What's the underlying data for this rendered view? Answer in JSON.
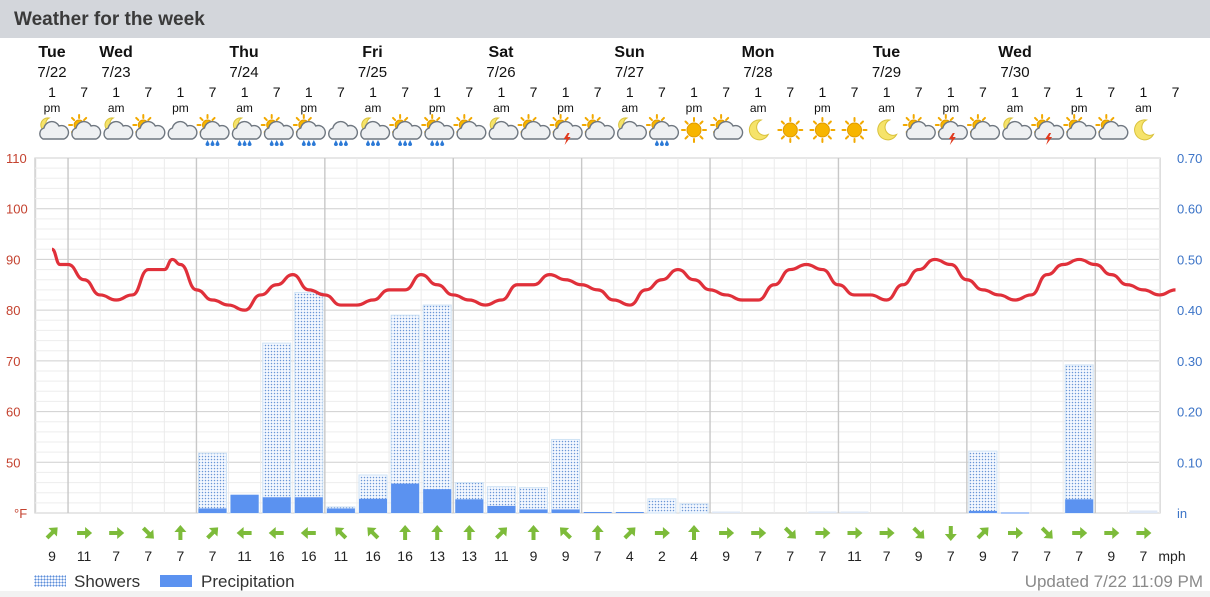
{
  "header": {
    "title": "Weather for the week"
  },
  "days": [
    {
      "name": "Tue",
      "date": "7/22"
    },
    {
      "name": "Wed",
      "date": "7/23"
    },
    {
      "name": "Thu",
      "date": "7/24"
    },
    {
      "name": "Fri",
      "date": "7/25"
    },
    {
      "name": "Sat",
      "date": "7/26"
    },
    {
      "name": "Sun",
      "date": "7/27"
    },
    {
      "name": "Mon",
      "date": "7/28"
    },
    {
      "name": "Tue",
      "date": "7/29"
    },
    {
      "name": "Wed",
      "date": "7/30"
    }
  ],
  "time_slots": [
    {
      "hour": "1",
      "ampm": "pm"
    },
    {
      "hour": "7",
      "ampm": ""
    },
    {
      "hour": "1",
      "ampm": "am"
    },
    {
      "hour": "7",
      "ampm": ""
    },
    {
      "hour": "1",
      "ampm": "pm"
    },
    {
      "hour": "7",
      "ampm": ""
    },
    {
      "hour": "1",
      "ampm": "am"
    },
    {
      "hour": "7",
      "ampm": ""
    },
    {
      "hour": "1",
      "ampm": "pm"
    },
    {
      "hour": "7",
      "ampm": ""
    },
    {
      "hour": "1",
      "ampm": "am"
    },
    {
      "hour": "7",
      "ampm": ""
    },
    {
      "hour": "1",
      "ampm": "pm"
    },
    {
      "hour": "7",
      "ampm": ""
    },
    {
      "hour": "1",
      "ampm": "am"
    },
    {
      "hour": "7",
      "ampm": ""
    },
    {
      "hour": "1",
      "ampm": "pm"
    },
    {
      "hour": "7",
      "ampm": ""
    },
    {
      "hour": "1",
      "ampm": "am"
    },
    {
      "hour": "7",
      "ampm": ""
    },
    {
      "hour": "1",
      "ampm": "pm"
    },
    {
      "hour": "7",
      "ampm": ""
    },
    {
      "hour": "1",
      "ampm": "am"
    },
    {
      "hour": "7",
      "ampm": ""
    },
    {
      "hour": "1",
      "ampm": "pm"
    },
    {
      "hour": "7",
      "ampm": ""
    },
    {
      "hour": "1",
      "ampm": "am"
    },
    {
      "hour": "7",
      "ampm": ""
    },
    {
      "hour": "1",
      "ampm": "pm"
    },
    {
      "hour": "7",
      "ampm": ""
    },
    {
      "hour": "1",
      "ampm": "am"
    },
    {
      "hour": "7",
      "ampm": ""
    },
    {
      "hour": "1",
      "ampm": "pm"
    },
    {
      "hour": "7",
      "ampm": ""
    },
    {
      "hour": "1",
      "ampm": "am"
    },
    {
      "hour": "7",
      "ampm": ""
    }
  ],
  "icons": [
    "partly-cloudy-night-icon",
    "partly-cloudy-icon",
    "partly-cloudy-night-icon",
    "partly-cloudy-icon",
    "cloudy-icon",
    "partly-cloudy-showers-icon",
    "partly-cloudy-night-showers-icon",
    "partly-cloudy-showers-icon",
    "partly-cloudy-showers-icon",
    "cloudy-showers-icon",
    "night-showers-icon",
    "partly-cloudy-showers-icon",
    "partly-cloudy-showers-icon",
    "partly-cloudy-icon",
    "partly-cloudy-night-icon",
    "partly-cloudy-icon",
    "partly-cloudy-thunder-icon",
    "partly-cloudy-icon",
    "partly-cloudy-night-icon",
    "partly-cloudy-showers-icon",
    "sunny-icon",
    "partly-cloudy-icon",
    "clear-night-icon",
    "sunny-icon",
    "sunny-icon",
    "sunny-icon",
    "clear-night-icon",
    "partly-cloudy-icon",
    "partly-cloudy-thunder-icon",
    "partly-cloudy-icon",
    "partly-cloudy-night-icon",
    "partly-cloudy-thunder-icon",
    "partly-cloudy-icon",
    "partly-cloudy-icon",
    "clear-night-icon"
  ],
  "chart_data": {
    "type": "line",
    "temperature": {
      "color": "#e0303a",
      "unit": "°F",
      "ylim": [
        40,
        110
      ],
      "ticks": [
        "110",
        "100",
        "90",
        "80",
        "70",
        "60",
        "50"
      ],
      "x": [
        0,
        0.25,
        0.5,
        1,
        1.5,
        2,
        2.5,
        3,
        3.5,
        3.75,
        4,
        4.5,
        5,
        5.5,
        6,
        6.5,
        7,
        7.5,
        8,
        8.5,
        9,
        9.5,
        10,
        10.5,
        11,
        11.5,
        12,
        12.5,
        13,
        13.5,
        14,
        14.5,
        15,
        15.5,
        16,
        16.5,
        17,
        17.5,
        18,
        18.5,
        19,
        19.5,
        20,
        20.5,
        21,
        21.5,
        22,
        22.5,
        23,
        23.5,
        24,
        24.5,
        25,
        25.5,
        26,
        26.5,
        27,
        27.5,
        28,
        28.5,
        29,
        29.5,
        30,
        30.5,
        31,
        31.5,
        32,
        32.5,
        33,
        33.5,
        34,
        34.5,
        35
      ],
      "y": [
        92,
        89,
        89,
        86,
        83,
        82,
        83,
        88,
        88,
        90,
        89,
        84,
        82,
        81,
        80,
        83,
        85,
        87,
        84,
        83,
        81,
        81,
        82,
        84,
        84,
        87,
        85,
        83,
        82,
        81,
        82,
        85,
        85,
        87,
        86,
        85,
        84,
        82,
        81,
        84,
        86,
        88,
        86,
        84,
        83,
        82,
        82,
        85,
        88,
        89,
        88,
        85,
        83,
        83,
        82,
        85,
        88,
        90,
        89,
        86,
        84,
        83,
        82,
        83,
        87,
        89,
        90,
        89,
        87,
        85,
        84,
        83,
        84
      ]
    },
    "precipitation": {
      "unit": "in",
      "ylim": [
        0,
        0.7
      ],
      "ticks": [
        "0.70",
        "0.60",
        "0.50",
        "0.40",
        "0.30",
        "0.20",
        "0.10"
      ],
      "showers": [
        0,
        0,
        0,
        0,
        0,
        0.118,
        0.035,
        0.335,
        0.435,
        0.012,
        0.075,
        0.39,
        0.41,
        0.06,
        0.052,
        0.05,
        0.145,
        0,
        0,
        0.028,
        0.018,
        0.003,
        0,
        0,
        0.003,
        0.003,
        0,
        0,
        0,
        0.122,
        0,
        0,
        0.292,
        0,
        0.005,
        0
      ],
      "precipitation": [
        0,
        0,
        0,
        0,
        0,
        0.009,
        0.036,
        0.031,
        0.031,
        0.009,
        0.028,
        0.058,
        0.047,
        0.027,
        0.014,
        0.007,
        0.007,
        0.002,
        0.002,
        0,
        0,
        0,
        0,
        0,
        0,
        0,
        0,
        0,
        0,
        0.004,
        0.001,
        0,
        0.027,
        0,
        0,
        0
      ]
    },
    "wind": {
      "unit": "mph",
      "speeds": [
        "9",
        "11",
        "7",
        "7",
        "7",
        "7",
        "11",
        "16",
        "16",
        "11",
        "16",
        "16",
        "13",
        "13",
        "11",
        "9",
        "9",
        "7",
        "4",
        "2",
        "4",
        "9",
        "7",
        "7",
        "7",
        "11",
        "7",
        "9",
        "7",
        "9",
        "7",
        "7",
        "7",
        "9",
        "7"
      ],
      "directions_deg": [
        45,
        90,
        90,
        135,
        0,
        45,
        270,
        270,
        270,
        315,
        315,
        0,
        0,
        0,
        45,
        0,
        315,
        0,
        45,
        90,
        0,
        90,
        90,
        135,
        90,
        90,
        90,
        135,
        180,
        45,
        90,
        135,
        90,
        90,
        90
      ]
    },
    "legend": [
      {
        "name": "Showers"
      },
      {
        "name": "Precipitation"
      }
    ],
    "grid": true
  },
  "footer": {
    "updated": "Updated 7/22 11:09 PM"
  }
}
